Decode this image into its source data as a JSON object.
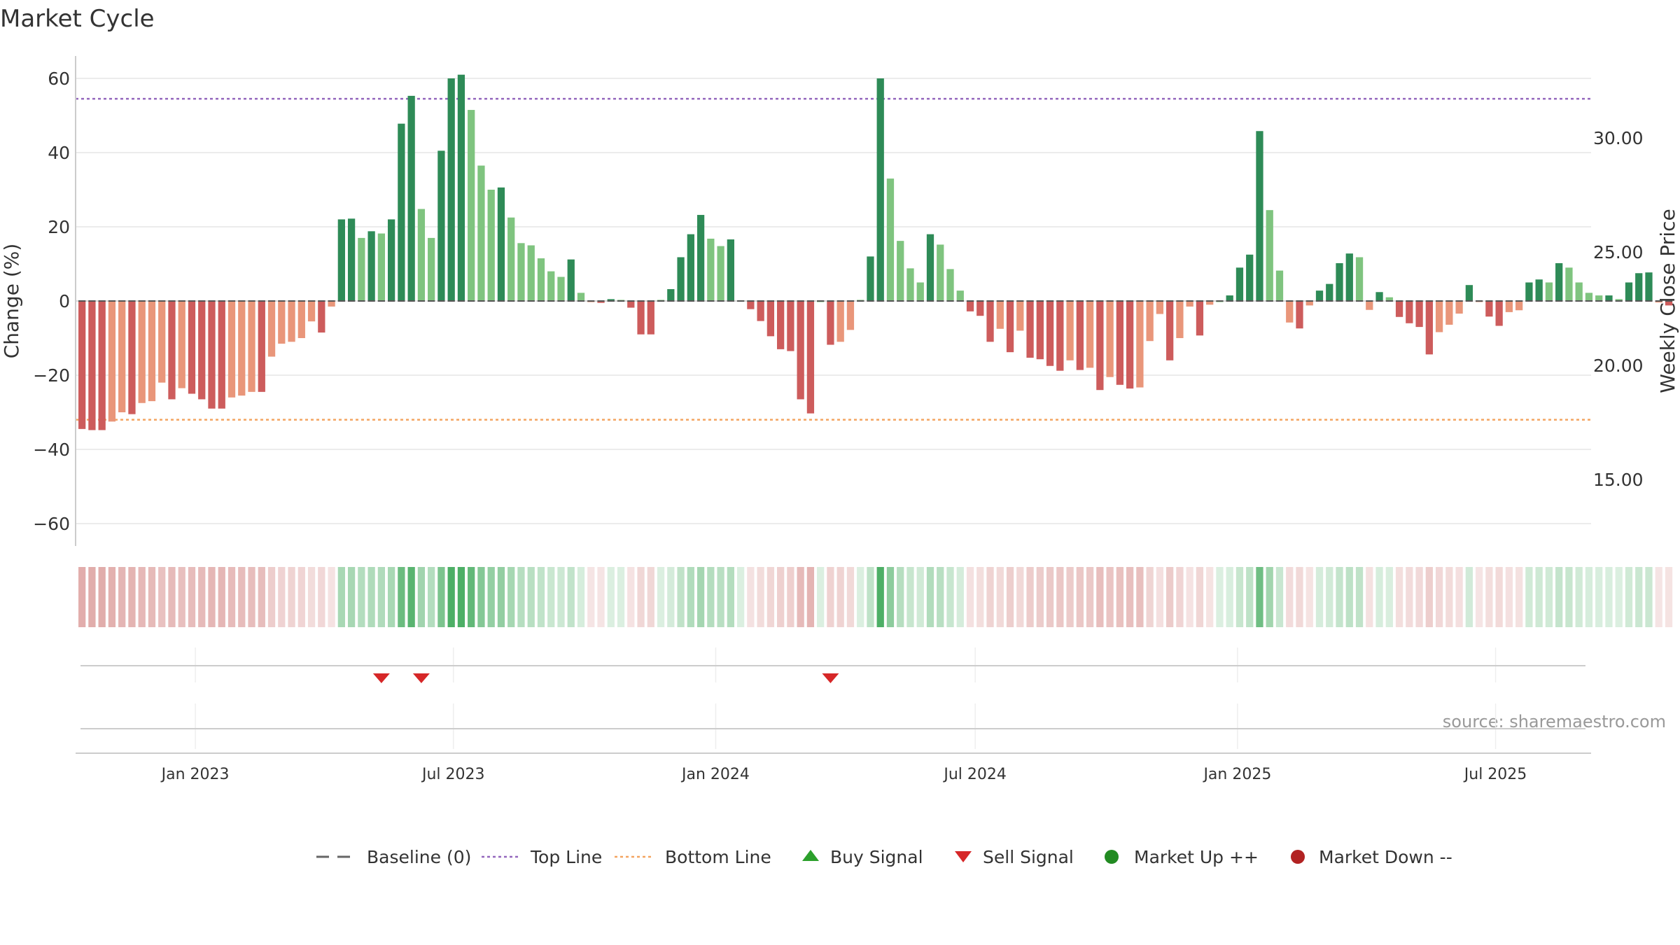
{
  "chart_data": {
    "type": "bar",
    "title": "Market Cycle",
    "ylabel": "Change (%)",
    "y2label": "Weekly Close Price",
    "ylim": [
      -65,
      66
    ],
    "y2lim": [
      12.5,
      34.0
    ],
    "yticks": [
      -60,
      -40,
      -20,
      0,
      20,
      40,
      60
    ],
    "y2ticks": [
      "15.00",
      "20.00",
      "25.00",
      "30.00"
    ],
    "xlim": [
      "2022-10-09",
      "2025-09-06"
    ],
    "xticks": [
      {
        "date": "2023-01-01",
        "label": "Jan 2023"
      },
      {
        "date": "2023-07-01",
        "label": "Jul 2023"
      },
      {
        "date": "2024-01-01",
        "label": "Jan 2024"
      },
      {
        "date": "2024-07-01",
        "label": "Jul 2024"
      },
      {
        "date": "2025-01-01",
        "label": "Jan 2025"
      },
      {
        "date": "2025-07-01",
        "label": "Jul 2025"
      }
    ],
    "top_line": 54.5,
    "bottom_line": -32,
    "first_week": "2022-10-10",
    "values": [
      -34.5,
      -34.8,
      -34.8,
      -32.5,
      -30,
      -30.5,
      -27.5,
      -27,
      -22,
      -26.5,
      -23.5,
      -25,
      -26.5,
      -29,
      -29,
      -26,
      -25.5,
      -24.5,
      -24.5,
      -15,
      -11.5,
      -11,
      -10,
      -5.5,
      -8.5,
      -1.5,
      22,
      22.2,
      17,
      18.8,
      18.2,
      22,
      47.8,
      55.3,
      24.8,
      17,
      40.5,
      60,
      61,
      51.5,
      36.5,
      30,
      30.6,
      22.5,
      15.6,
      15,
      11.5,
      8,
      6.5,
      11.2,
      2.2,
      -0.3,
      -0.5,
      0.5,
      0.3,
      -1.8,
      -9,
      -9,
      0.3,
      3.2,
      11.8,
      18,
      23.2,
      16.8,
      14.8,
      16.6,
      0.2,
      -2.2,
      -5.4,
      -9.5,
      -13,
      -13.5,
      -26.5,
      -30.3,
      0,
      -11.8,
      -11,
      -7.8,
      0.3,
      12,
      60,
      33,
      16.2,
      8.8,
      5,
      18,
      15.2,
      8.6,
      2.8,
      -2.8,
      -4,
      -11,
      -7.5,
      -13.8,
      -8,
      -15.3,
      -15.7,
      -17.5,
      -18.8,
      -16,
      -18.6,
      -18,
      -24,
      -20.5,
      -22.6,
      -23.6,
      -23.3,
      -10.8,
      -3.5,
      -16,
      -10,
      -1.5,
      -9.3,
      -1,
      0,
      1.5,
      9,
      12.5,
      45.8,
      24.5,
      8.2,
      -5.8,
      -7.4,
      -1.2,
      2.8,
      4.6,
      10.2,
      12.8,
      11.8,
      -2.4,
      2.4,
      1,
      -4.3,
      -6,
      -7,
      -14.4,
      -8.4,
      -6.4,
      -3.4,
      4.3,
      -0.2,
      -4.2,
      -6.7,
      -3,
      -2.5,
      5,
      5.8,
      5,
      10.2,
      9,
      5,
      2.2,
      1.5,
      1.5,
      0.5,
      5,
      7.5,
      7.7,
      -0.4,
      -1.2
    ],
    "band_values": [
      -34.5,
      -34.8,
      -34.8,
      -32.5,
      -30,
      -30.5,
      -27.5,
      -27,
      -22,
      -26.5,
      -23.5,
      -25,
      -26.5,
      -29,
      -29,
      -26,
      -25.5,
      -24.5,
      -24.5,
      -15,
      -11.5,
      -11,
      -10,
      -5.5,
      -8.5,
      -1.5,
      22,
      22.2,
      17,
      18.8,
      18.2,
      22,
      47.8,
      55.3,
      24.8,
      17,
      40.5,
      60,
      61,
      51.5,
      36.5,
      30,
      30.6,
      22.5,
      15.6,
      15,
      11.5,
      8,
      6.5,
      11.2,
      2.2,
      -0.3,
      -0.5,
      0.5,
      0.3,
      -1.8,
      -9,
      -9,
      0.3,
      3.2,
      11.8,
      18,
      23.2,
      16.8,
      14.8,
      16.6,
      0.2,
      -2.2,
      -5.4,
      -9.5,
      -13,
      -13.5,
      -26.5,
      -30.3,
      0,
      -11.8,
      -11,
      -7.8,
      0.3,
      12,
      60,
      33,
      16.2,
      8.8,
      5,
      18,
      15.2,
      8.6,
      2.8,
      -2.8,
      -4,
      -11,
      -7.5,
      -13.8,
      -8,
      -15.3,
      -15.7,
      -17.5,
      -18.8,
      -16,
      -18.6,
      -18,
      -24,
      -20.5,
      -22.6,
      -23.6,
      -23.3,
      -10.8,
      -3.5,
      -16,
      -10,
      -1.5,
      -9.3,
      -1,
      0,
      1.5,
      9,
      12.5,
      45.8,
      24.5,
      8.2,
      -5.8,
      -7.4,
      -1.2,
      2.8,
      4.6,
      10.2,
      12.8,
      11.8,
      -2.4,
      2.4,
      1,
      -4.3,
      -6,
      -7,
      -14.4,
      -8.4,
      -6.4,
      -3.4,
      4.3,
      -0.2,
      -4.2,
      -6.7,
      -3,
      -2.5,
      5,
      5.8,
      5,
      10.2,
      9,
      5,
      2.2,
      1.5,
      1.5,
      0.5,
      5,
      7.5,
      7.7,
      -0.4,
      -1.2
    ],
    "sell_signals": [
      "2023-05-08",
      "2023-06-05",
      "2024-03-18"
    ],
    "buy_signals": [],
    "colors": {
      "up_strong": "#2e8b57",
      "up_light": "#7fc47f",
      "down_strong": "#cd5c5c",
      "down_light": "#e9967a",
      "top_line": "#9467bd",
      "bottom_line": "#f4a460",
      "baseline": "#666666",
      "sell": "#d62728",
      "buy": "#2ca02c",
      "market_up": "#228b22",
      "market_down": "#b22222"
    },
    "legend": {
      "placement": "bottom-center",
      "entries": [
        {
          "key": "baseline",
          "label": "Baseline (0)"
        },
        {
          "key": "top_line",
          "label": "Top Line"
        },
        {
          "key": "bottom_line",
          "label": "Bottom Line"
        },
        {
          "key": "buy",
          "label": "Buy Signal"
        },
        {
          "key": "sell",
          "label": "Sell Signal"
        },
        {
          "key": "market_up",
          "label": "Market Up ++"
        },
        {
          "key": "market_down",
          "label": "Market Down --"
        }
      ]
    },
    "annotation": "source: sharemaestro.com",
    "grid": true
  }
}
